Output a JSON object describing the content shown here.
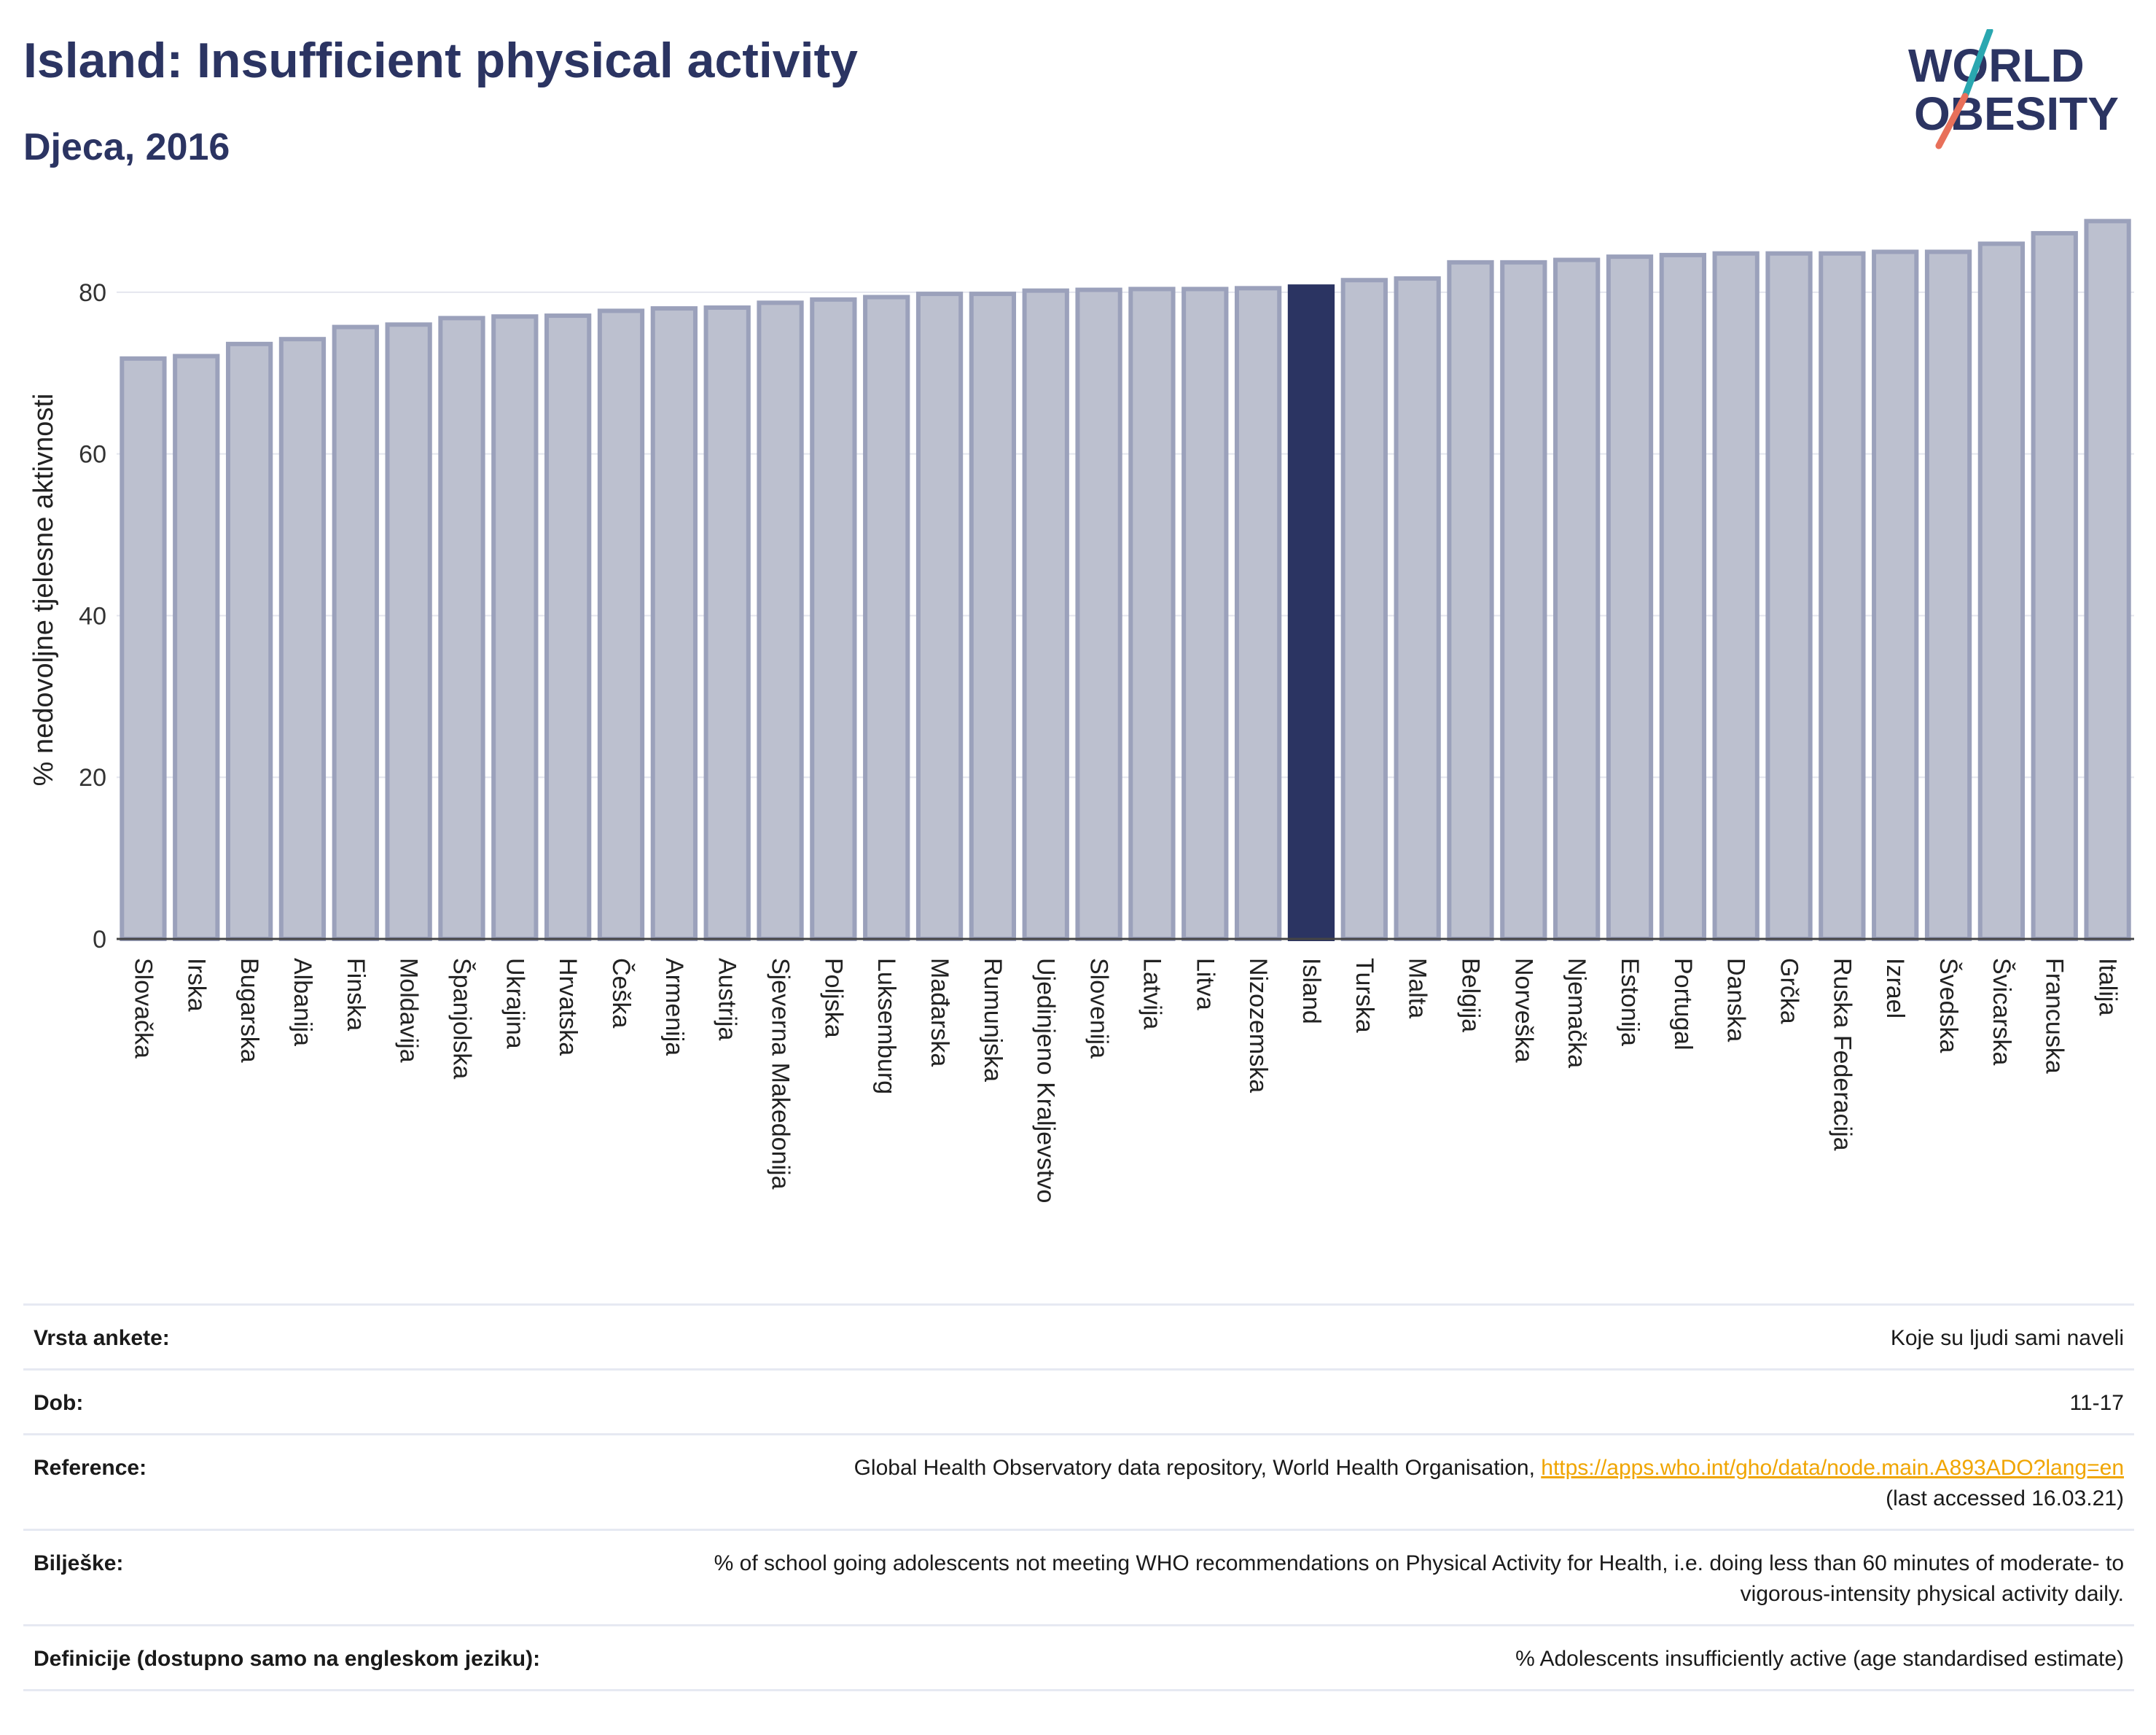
{
  "header": {
    "title": "Island: Insufficient physical activity",
    "subtitle": "Djeca, 2016",
    "logo_line1": "WORLD",
    "logo_line2": "OBESITY"
  },
  "colors": {
    "accent": "#2b3462",
    "bar_default": "#bcc0cf",
    "bar_stroke": "#9ba1bb",
    "bar_highlight": "#2b3462",
    "logo_slash_teal": "#2aa7b0",
    "logo_slash_coral": "#e8705a",
    "link": "#f0a500"
  },
  "chart_data": {
    "type": "bar",
    "ylabel": "% nedovoljne tjelesne aktivnosti",
    "ylim": [
      0,
      90
    ],
    "yticks": [
      0,
      20,
      40,
      60,
      80
    ],
    "grid": true,
    "highlight": "Island",
    "categories": [
      "Slovačka",
      "Irska",
      "Bugarska",
      "Albanija",
      "Finska",
      "Moldavija",
      "Španjolska",
      "Ukrajina",
      "Hrvatska",
      "Češka",
      "Armenija",
      "Austrija",
      "Sjeverna Makedonija",
      "Poljska",
      "Luksemburg",
      "Mađarska",
      "Rumunjska",
      "Ujedinjeno Kraljevstvo",
      "Slovenija",
      "Latvija",
      "Litva",
      "Nizozemska",
      "Island",
      "Turska",
      "Malta",
      "Belgija",
      "Norveška",
      "Njemačka",
      "Estonija",
      "Portugal",
      "Danska",
      "Grčka",
      "Ruska Federacija",
      "Izrael",
      "Švedska",
      "Švicarska",
      "Francuska",
      "Italija"
    ],
    "values": [
      71.8,
      72.1,
      73.6,
      74.2,
      75.7,
      76.0,
      76.8,
      77.0,
      77.1,
      77.7,
      78.0,
      78.1,
      78.7,
      79.1,
      79.4,
      79.8,
      79.8,
      80.2,
      80.3,
      80.4,
      80.4,
      80.5,
      80.7,
      81.5,
      81.7,
      83.7,
      83.7,
      84.0,
      84.4,
      84.6,
      84.8,
      84.8,
      84.8,
      85.0,
      85.0,
      86.0,
      87.3,
      88.8
    ]
  },
  "info": {
    "rows": [
      {
        "label": "Vrsta ankete:",
        "value": "Koje su ljudi sami naveli"
      },
      {
        "label": "Dob:",
        "value": "11-17"
      },
      {
        "label": "Reference:",
        "value": "Global Health Observatory data repository, World Health Organisation, ",
        "link": "https://apps.who.int/gho/data/node.main.A893ADO?lang=en",
        "value2": "(last accessed 16.03.21)"
      },
      {
        "label": "Bilješke:",
        "value": "% of school going adolescents not meeting WHO recommendations on Physical Activity for Health, i.e. doing less than 60 minutes of moderate- to vigorous-intensity physical activity daily."
      },
      {
        "label": "Definicije (dostupno samo na engleskom jeziku):",
        "value": "% Adolescents insufficiently active (age standardised estimate)"
      }
    ]
  }
}
